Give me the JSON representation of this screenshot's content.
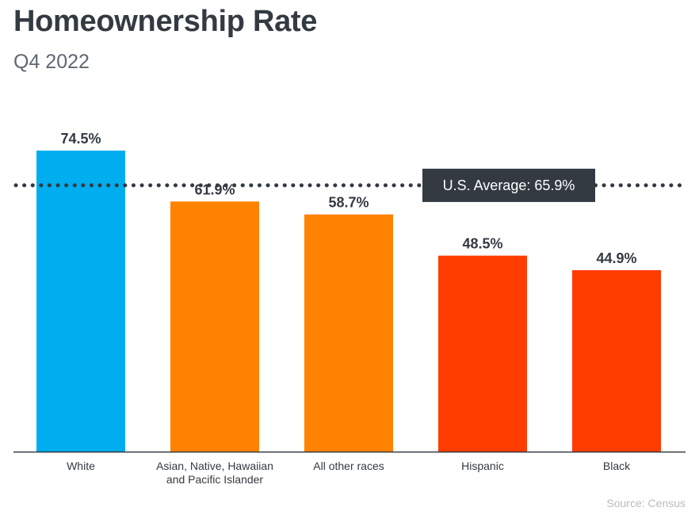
{
  "title": "Homeownership Rate",
  "subtitle": "Q4 2022",
  "source": "Source: Census",
  "chart_data": {
    "type": "bar",
    "title": "Homeownership Rate",
    "subtitle": "Q4 2022",
    "categories": [
      "White",
      "Asian, Native, Hawaiian and Pacific Islander",
      "All other races",
      "Hispanic",
      "Black"
    ],
    "category_lines": [
      [
        "White"
      ],
      [
        "Asian, Native, Hawaiian",
        "and Pacific Islander"
      ],
      [
        "All other races"
      ],
      [
        "Hispanic"
      ],
      [
        "Black"
      ]
    ],
    "values": [
      74.5,
      61.9,
      58.7,
      48.5,
      44.9
    ],
    "value_labels": [
      "74.5%",
      "61.9%",
      "58.7%",
      "48.5%",
      "44.9%"
    ],
    "colors": [
      "#00aeef",
      "#ff8200",
      "#ff8200",
      "#ff3c00",
      "#ff3c00"
    ],
    "ylim": [
      0,
      80
    ],
    "grid": false,
    "reference_line": {
      "value": 65.9,
      "label": "U.S. Average: 65.9%",
      "style": "dotted",
      "color": "#333a42"
    },
    "xlabel": "",
    "ylabel": ""
  }
}
